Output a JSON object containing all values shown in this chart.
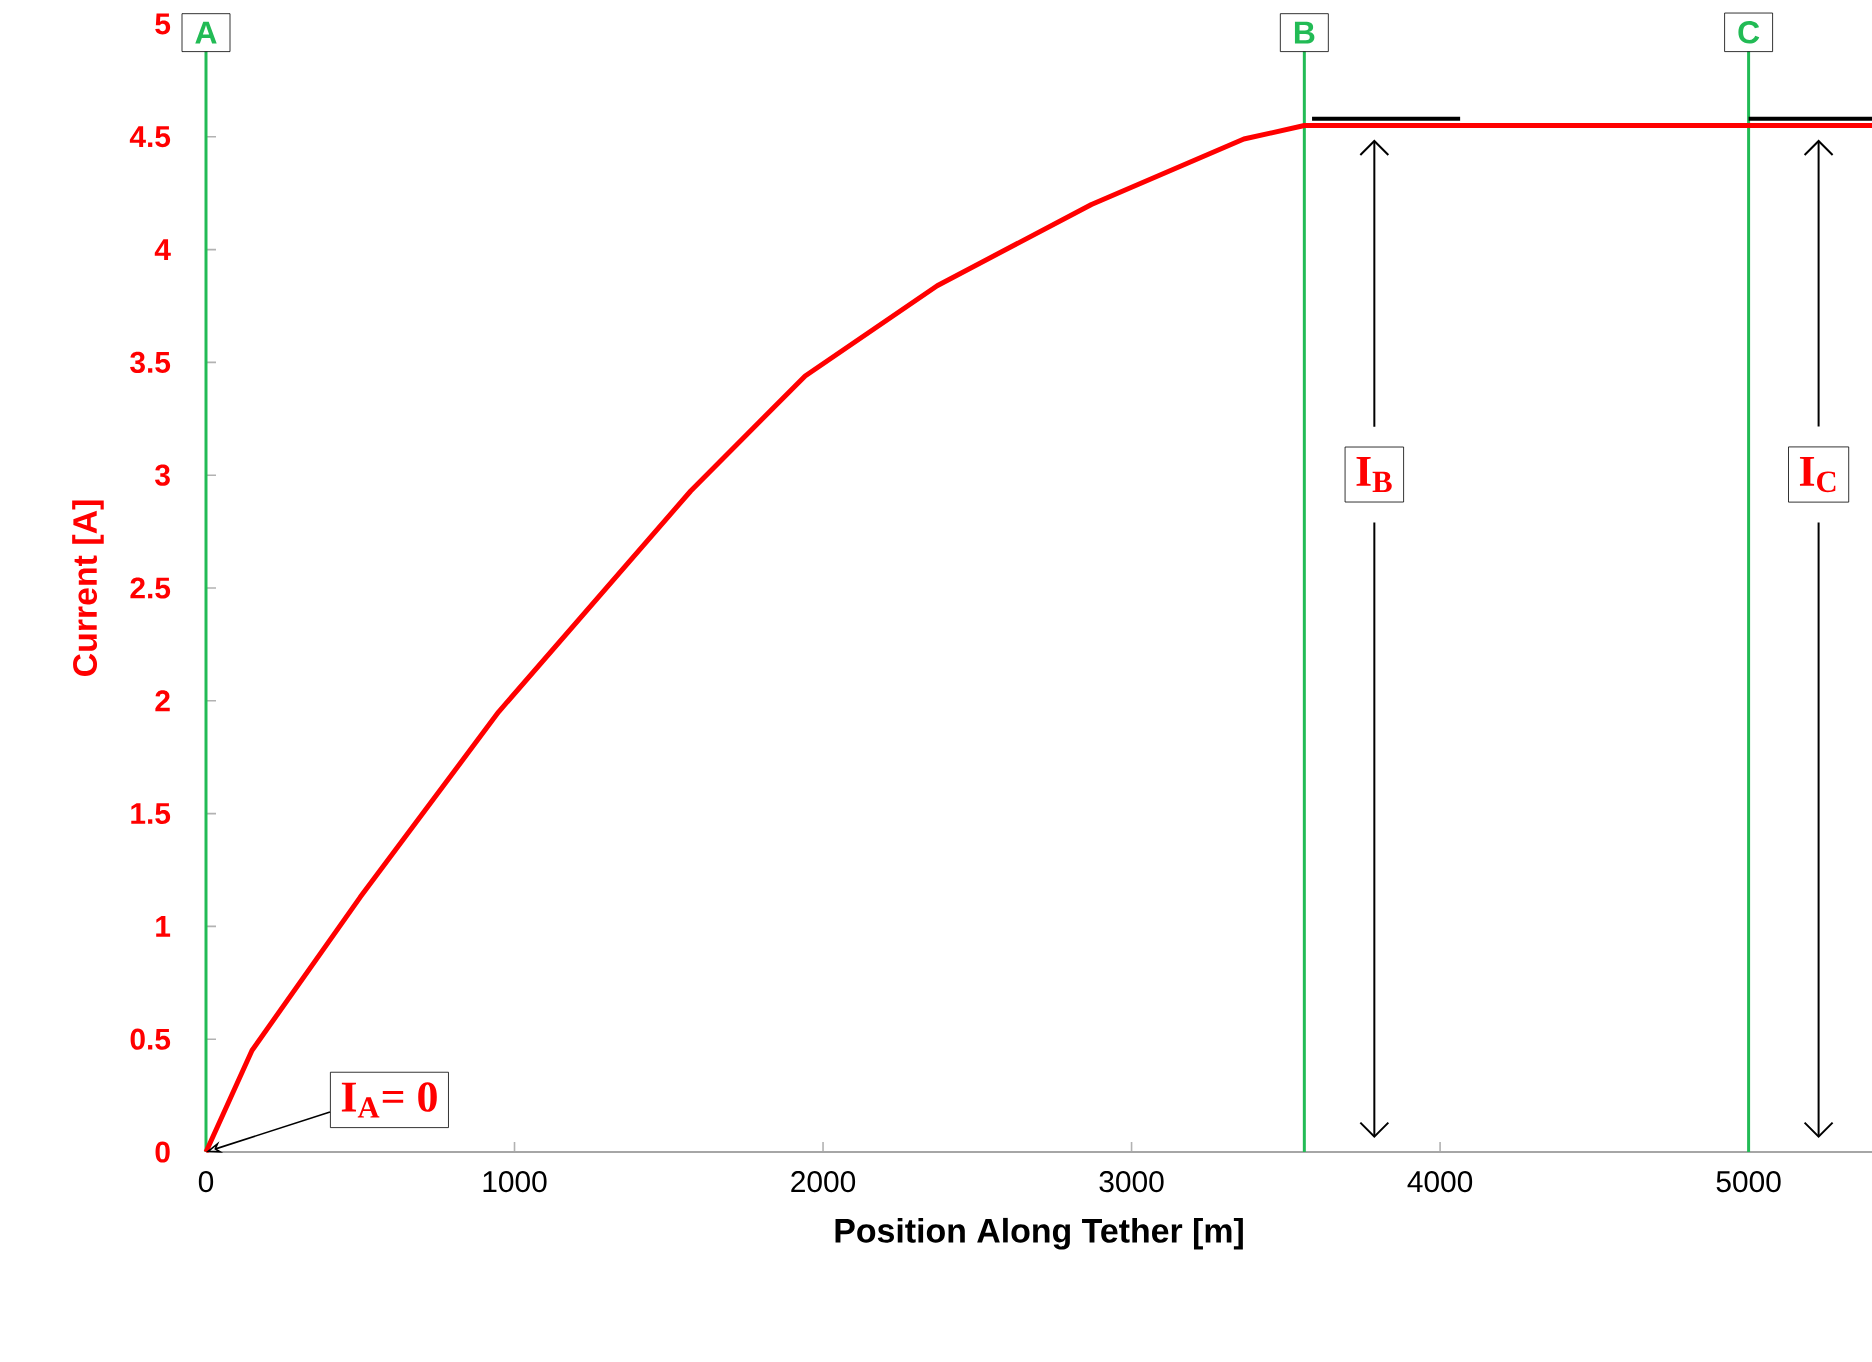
{
  "chart_data": {
    "type": "line",
    "xlabel": "Position Along Tether [m]",
    "ylabel": "Current [A]",
    "x": [
      0,
      149,
      500,
      948,
      1571,
      1942,
      2370,
      2870,
      3364,
      3560,
      5400
    ],
    "series": [
      {
        "color": "#ff0000",
        "values": [
          0,
          0.45,
          1.13,
          1.95,
          2.93,
          3.44,
          3.84,
          4.2,
          4.49,
          4.55,
          4.55
        ]
      },
      {
        "color": "#000000",
        "x": [
          3585,
          4065
        ],
        "values": [
          4.58,
          4.58
        ]
      },
      {
        "color": "#000000",
        "x": [
          5000,
          5400
        ],
        "values": [
          4.58,
          4.58
        ]
      }
    ],
    "xlim": [
      0,
      5400
    ],
    "ylim": [
      0,
      5
    ],
    "xticks": [
      0,
      1000,
      2000,
      3000,
      4000,
      5000
    ],
    "yticks": [
      0,
      0.5,
      1,
      1.5,
      2,
      2.5,
      3,
      3.5,
      4,
      4.5,
      5
    ],
    "ref_lines": [
      {
        "axis": "x",
        "value": 0,
        "label": "A",
        "color": "#22bb55"
      },
      {
        "axis": "x",
        "value": 3560,
        "label": "B",
        "color": "#22bb55"
      },
      {
        "axis": "x",
        "value": 5000,
        "label": "C",
        "color": "#22bb55"
      }
    ],
    "annotations": [
      {
        "text": "I$_{A}$= 0",
        "x": 0,
        "y": 0
      },
      "I$_{B}$",
      "I$_{C}$"
    ],
    "grid": false,
    "marker": "none",
    "line_style": "solid"
  }
}
